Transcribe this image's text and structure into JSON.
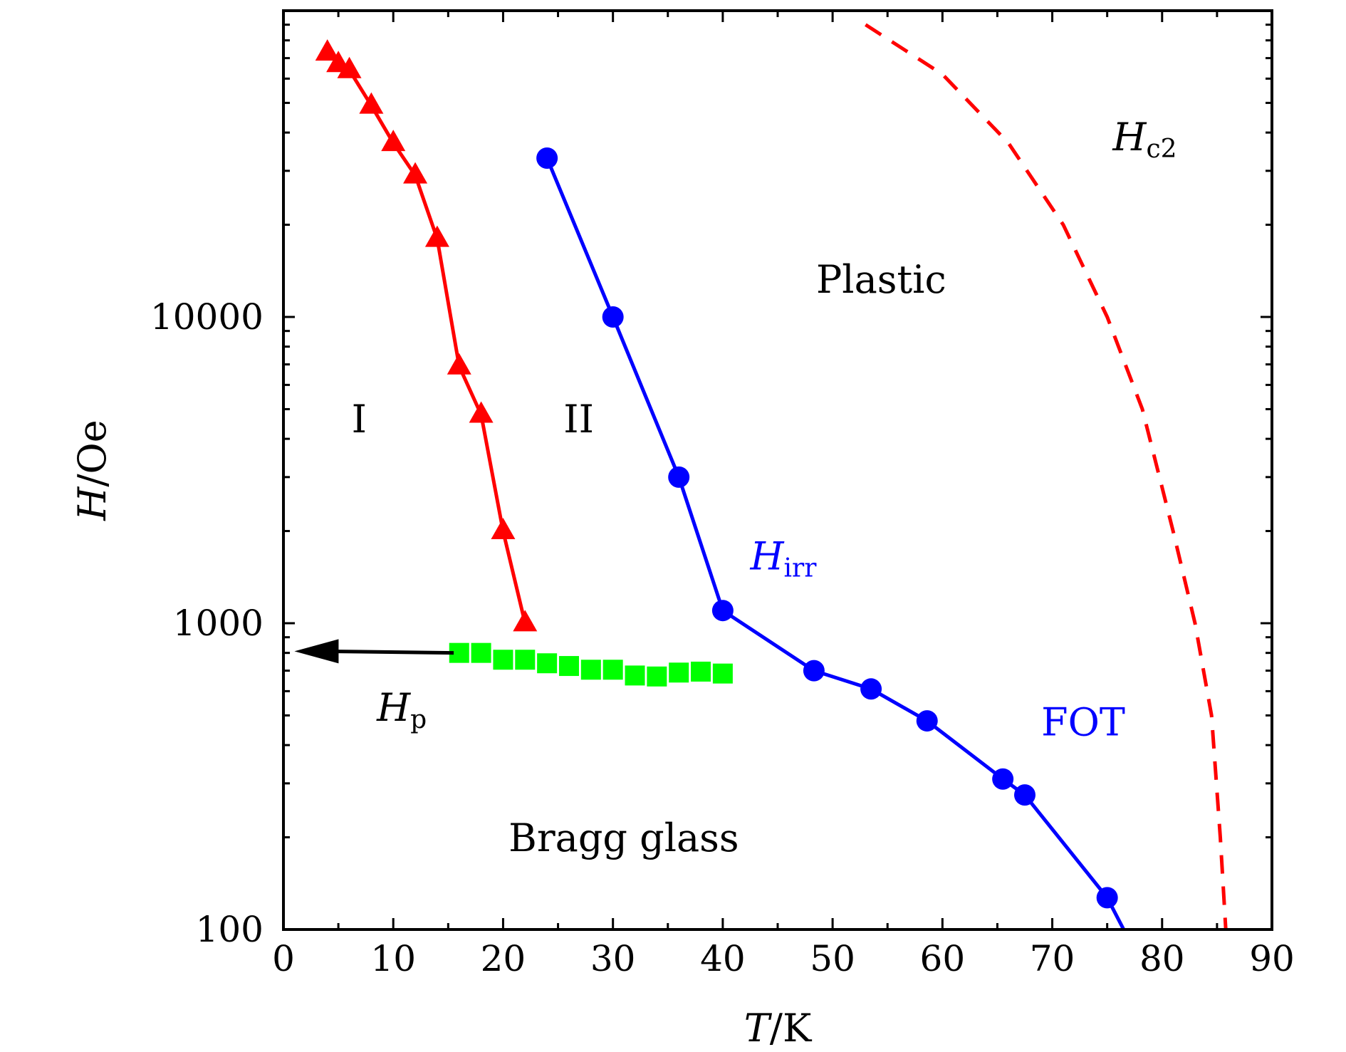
{
  "chart_data": {
    "type": "scatter",
    "title": "",
    "xlabel": {
      "main": "T",
      "sep": "/",
      "unit": "K"
    },
    "ylabel": {
      "main": "H",
      "sep": "/",
      "unit": "Oe"
    },
    "xlim": [
      0,
      90
    ],
    "ylim": [
      100,
      100000
    ],
    "y_scale": "log",
    "grid": false,
    "legend": "none",
    "x_ticks": [
      0,
      10,
      20,
      30,
      40,
      50,
      60,
      70,
      80,
      90
    ],
    "x_tick_labels": [
      "0",
      "10",
      "20",
      "30",
      "40",
      "50",
      "60",
      "70",
      "80",
      "90"
    ],
    "y_ticks": [
      100,
      1000,
      10000
    ],
    "y_tick_labels": [
      "100",
      "1000",
      "10000"
    ],
    "series": [
      {
        "id": "triangles",
        "marker": "triangle",
        "line": "solid",
        "color": "#ff0000",
        "x": [
          4,
          5,
          6,
          8,
          10,
          12,
          14,
          16,
          18,
          20,
          22
        ],
        "y": [
          73000,
          67000,
          64000,
          49000,
          37000,
          29000,
          18000,
          6900,
          4800,
          2000,
          1000
        ]
      },
      {
        "id": "circles",
        "marker": "circle",
        "line": "solid",
        "color": "#0000ff",
        "x": [
          24,
          30,
          36,
          40,
          48.3,
          53.5,
          58.6,
          65.5,
          67.5,
          75
        ],
        "y": [
          33000,
          10000,
          3000,
          1100,
          700,
          610,
          480,
          310,
          275,
          127
        ]
      },
      {
        "id": "squares",
        "marker": "square",
        "line": "none",
        "color": "#00ff00",
        "x": [
          16,
          18,
          20,
          22,
          24,
          26,
          28,
          30,
          32,
          34,
          36,
          38,
          40
        ],
        "y": [
          800,
          800,
          760,
          760,
          740,
          725,
          705,
          705,
          675,
          670,
          690,
          695,
          685
        ]
      }
    ],
    "lines": [
      {
        "id": "hirr-tail",
        "style": "solid",
        "color": "#0000ff",
        "x": [
          75,
          76.5
        ],
        "y": [
          127,
          100
        ]
      },
      {
        "id": "hc2-curve",
        "style": "dashed",
        "color": "#ff0000",
        "x": [
          53,
          60,
          66,
          71,
          75,
          78.2,
          81,
          83,
          84.5,
          85.3,
          85.8
        ],
        "y": [
          90000,
          62000,
          37000,
          20000,
          10000,
          5000,
          2000,
          1000,
          500,
          200,
          100
        ]
      }
    ],
    "arrow": {
      "color": "#000000",
      "from": [
        15.5,
        800
      ],
      "to": [
        1.0,
        810
      ]
    },
    "annotations": [
      {
        "id": "hc2-label",
        "main": "H",
        "sub": "c2",
        "x": 75.5,
        "y": 35000,
        "color": "#000000"
      },
      {
        "id": "plastic-label",
        "text": "Plastic",
        "x": 48.5,
        "y": 12000,
        "color": "#000000"
      },
      {
        "id": "region-one-label",
        "text": "I",
        "x": 6.2,
        "y": 4200,
        "color": "#000000"
      },
      {
        "id": "region-two-label",
        "text": "II",
        "x": 25.5,
        "y": 4200,
        "color": "#000000"
      },
      {
        "id": "hirr-label",
        "main": "H",
        "sub": "irr",
        "x": 42.5,
        "y": 1500,
        "color": "#0000ff"
      },
      {
        "id": "hp-label",
        "main": "H",
        "sub": "p",
        "x": 8.5,
        "y": 480,
        "color": "#000000"
      },
      {
        "id": "fot-label",
        "text": "FOT",
        "x": 69,
        "y": 430,
        "color": "#0000ff"
      },
      {
        "id": "bragg-glass-label",
        "text": "Bragg glass",
        "x": 20.5,
        "y": 180,
        "color": "#000000"
      }
    ]
  }
}
